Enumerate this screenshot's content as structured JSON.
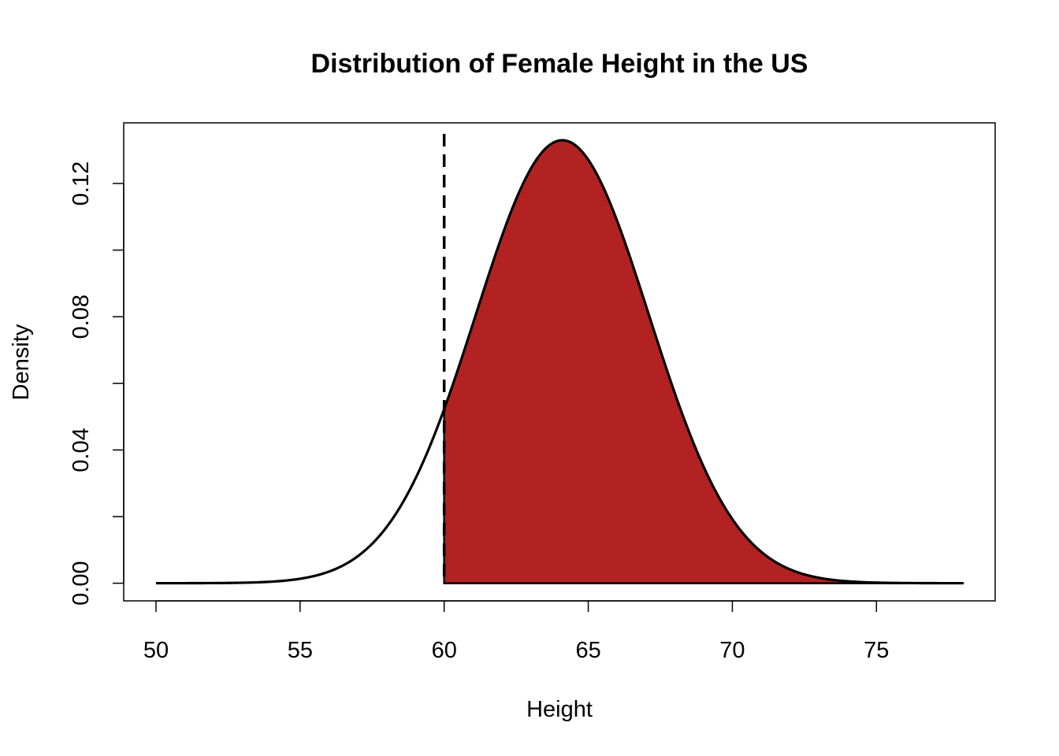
{
  "chart_data": {
    "type": "area",
    "title": "Distribution of Female Height in the US",
    "xlabel": "Height",
    "ylabel": "Density",
    "distribution": {
      "name": "normal",
      "mean": 64.1,
      "sd": 3.0
    },
    "x_range": [
      50,
      78
    ],
    "xlim": [
      48.88,
      79.12
    ],
    "ylim": [
      -0.0053,
      0.1382
    ],
    "x_ticks": [
      50,
      55,
      60,
      65,
      70,
      75
    ],
    "y_ticks": [
      0.0,
      0.04,
      0.08,
      0.12
    ],
    "y_tick_labels": [
      "0.00",
      "0.04",
      "0.08",
      "0.12"
    ],
    "y_minor_ticks": [
      0.02,
      0.06,
      0.1
    ],
    "shaded_region": {
      "from": 60,
      "to": 78,
      "color": "#B22222"
    },
    "cutoff_line": {
      "x": 60,
      "style": "dashed",
      "color": "#000000"
    },
    "sample_points": [
      {
        "x": 50,
        "y": 0.0
      },
      {
        "x": 55,
        "y": 0.0014
      },
      {
        "x": 58,
        "y": 0.0167
      },
      {
        "x": 60,
        "y": 0.0523
      },
      {
        "x": 62,
        "y": 0.1046
      },
      {
        "x": 64.1,
        "y": 0.133
      },
      {
        "x": 66,
        "y": 0.1093
      },
      {
        "x": 68,
        "y": 0.0568
      },
      {
        "x": 70,
        "y": 0.0193
      },
      {
        "x": 72,
        "y": 0.004
      },
      {
        "x": 75,
        "y": 0.0002
      },
      {
        "x": 78,
        "y": 0.0
      }
    ],
    "grid": false,
    "legend": "none"
  }
}
